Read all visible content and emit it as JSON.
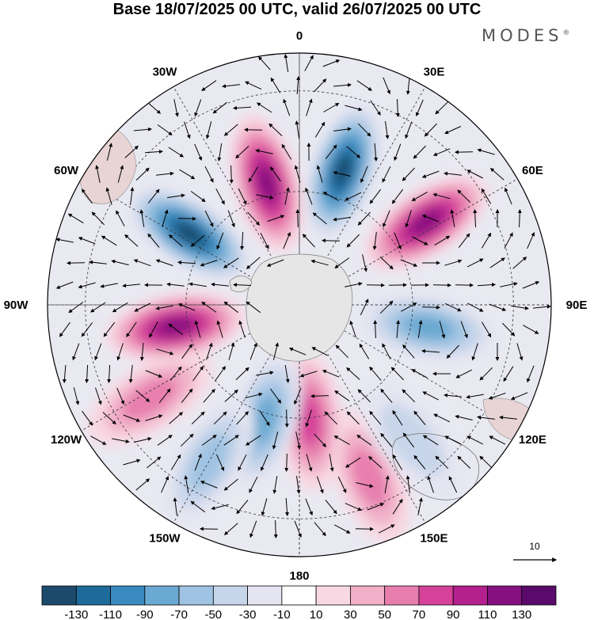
{
  "title": "Base 18/07/2025 00 UTC, valid 26/07/2025 00 UTC",
  "brand": "MODES",
  "brand_mark": "®",
  "map": {
    "projection": "south-polar-stereographic",
    "longitude_labels": [
      {
        "text": "0",
        "lon": 0
      },
      {
        "text": "30E",
        "lon": 30
      },
      {
        "text": "60E",
        "lon": 60
      },
      {
        "text": "90E",
        "lon": 90
      },
      {
        "text": "120E",
        "lon": 120
      },
      {
        "text": "150E",
        "lon": 150
      },
      {
        "text": "180",
        "lon": 180
      },
      {
        "text": "150W",
        "lon": -150
      },
      {
        "text": "120W",
        "lon": -120
      },
      {
        "text": "90W",
        "lon": -90
      },
      {
        "text": "60W",
        "lon": -60
      },
      {
        "text": "30W",
        "lon": -30
      }
    ],
    "anomaly_centers": [
      {
        "sign": "negative",
        "level": -130,
        "lon": 18,
        "colat": 0.56
      },
      {
        "sign": "positive",
        "level": 120,
        "lon": 57,
        "colat": 0.6
      },
      {
        "sign": "negative",
        "level": -70,
        "lon": 100,
        "colat": 0.52
      },
      {
        "sign": "positive",
        "level": 60,
        "lon": 158,
        "colat": 0.74
      },
      {
        "sign": "positive",
        "level": 70,
        "lon": 175,
        "colat": 0.46
      },
      {
        "sign": "negative",
        "level": -80,
        "lon": -163,
        "colat": 0.48
      },
      {
        "sign": "negative",
        "level": -50,
        "lon": -150,
        "colat": 0.72
      },
      {
        "sign": "positive",
        "level": 60,
        "lon": -122,
        "colat": 0.7
      },
      {
        "sign": "positive",
        "level": 110,
        "lon": -100,
        "colat": 0.5
      },
      {
        "sign": "negative",
        "level": -130,
        "lon": -57,
        "colat": 0.52
      },
      {
        "sign": "positive",
        "level": 110,
        "lon": -15,
        "colat": 0.5
      },
      {
        "sign": "negative",
        "level": -20,
        "lon": 140,
        "colat": 0.7
      }
    ],
    "vector_reference": "10"
  },
  "colorbar": {
    "tick_labels": [
      "-130",
      "-110",
      "-90",
      "-70",
      "-50",
      "-30",
      "-10",
      "10",
      "30",
      "50",
      "70",
      "90",
      "110",
      "130"
    ],
    "colors": [
      "#1c4a6b",
      "#1e6a9b",
      "#3a8ac0",
      "#6aa9d2",
      "#9fc3e2",
      "#c7d5ea",
      "#e5e5f1",
      "#ffffff",
      "#f8d8e2",
      "#f1b0c8",
      "#e77eae",
      "#d6429a",
      "#b4208d",
      "#86107f",
      "#5a0a6a"
    ]
  }
}
